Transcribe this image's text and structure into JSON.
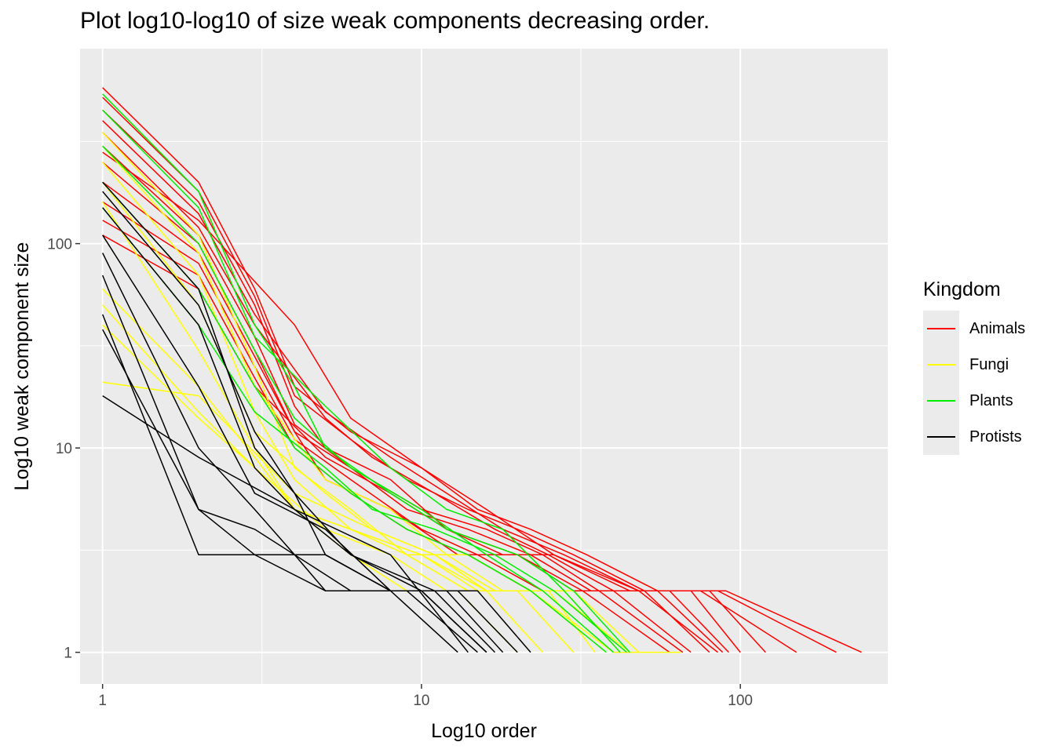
{
  "chart_data": {
    "type": "line",
    "title": "Plot log10-log10 of size  weak components decreasing order.",
    "xlabel": "Log10 order",
    "ylabel": "Log10 weak component size",
    "x_scale": "log10",
    "y_scale": "log10",
    "xlim": [
      0.85,
      290
    ],
    "ylim": [
      0.7,
      900
    ],
    "x_ticks": [
      1,
      10,
      100
    ],
    "x_tick_labels": [
      "1",
      "10",
      "100"
    ],
    "y_ticks": [
      1,
      10,
      100
    ],
    "y_tick_labels": [
      "1",
      "10",
      "100"
    ],
    "grid": true,
    "legend": {
      "title": "Kingdom",
      "position": "right",
      "entries": [
        {
          "name": "Animals",
          "color": "#ff0000"
        },
        {
          "name": "Fungi",
          "color": "#ffff00"
        },
        {
          "name": "Plants",
          "color": "#00ee00"
        },
        {
          "name": "Protists",
          "color": "#000000"
        }
      ]
    },
    "series": [
      {
        "name": "Animals",
        "color": "#ff0000",
        "lines": [
          {
            "x": [
              1,
              2,
              3,
              4,
              6,
              10,
              15,
              22,
              33,
              55,
              90,
              240
            ],
            "y": [
              580,
              200,
              60,
              20,
              12,
              8,
              5,
              4,
              3,
              2,
              2,
              1
            ]
          },
          {
            "x": [
              1,
              2,
              3,
              4,
              6,
              9,
              14,
              20,
              30,
              50,
              85,
              200
            ],
            "y": [
              520,
              180,
              55,
              18,
              11,
              7,
              5,
              4,
              3,
              2,
              2,
              1
            ]
          },
          {
            "x": [
              1,
              2,
              3,
              4,
              5,
              8,
              12,
              18,
              26,
              45,
              75,
              150
            ],
            "y": [
              450,
              160,
              50,
              16,
              10,
              7,
              4,
              3,
              3,
              2,
              2,
              1
            ]
          },
          {
            "x": [
              1,
              2,
              3,
              5,
              8,
              12,
              18,
              28,
              48,
              80,
              120
            ],
            "y": [
              400,
              140,
              45,
              15,
              9,
              6,
              4,
              3,
              2,
              2,
              1
            ]
          },
          {
            "x": [
              1,
              2,
              3,
              5,
              7,
              11,
              17,
              25,
              40,
              70,
              100
            ],
            "y": [
              350,
              120,
              40,
              14,
              9,
              6,
              4,
              3,
              2,
              2,
              1
            ]
          },
          {
            "x": [
              1,
              2,
              3,
              4,
              6,
              10,
              16,
              24,
              36,
              60,
              92
            ],
            "y": [
              300,
              110,
              35,
              13,
              8,
              5,
              4,
              3,
              2,
              2,
              1
            ]
          },
          {
            "x": [
              1,
              2,
              3,
              4,
              6,
              9,
              14,
              22,
              34,
              55,
              88
            ],
            "y": [
              250,
              100,
              30,
              12,
              8,
              5,
              4,
              3,
              2,
              2,
              1
            ]
          },
          {
            "x": [
              1,
              2,
              3,
              4,
              5,
              8,
              13,
              20,
              30,
              50,
              80
            ],
            "y": [
              200,
              90,
              28,
              12,
              7,
              5,
              3,
              3,
              2,
              2,
              1
            ]
          },
          {
            "x": [
              1,
              2,
              3,
              4,
              6,
              10,
              15,
              24,
              40,
              70
            ],
            "y": [
              160,
              80,
              25,
              11,
              7,
              4,
              3,
              2,
              2,
              1
            ]
          },
          {
            "x": [
              1,
              2,
              3,
              4,
              6,
              9,
              14,
              22,
              36,
              66
            ],
            "y": [
              130,
              70,
              22,
              10,
              6,
              4,
              3,
              2,
              2,
              1
            ]
          },
          {
            "x": [
              1,
              2,
              3,
              5,
              8,
              12,
              20,
              32,
              60
            ],
            "y": [
              110,
              60,
              20,
              9,
              6,
              4,
              3,
              2,
              1
            ]
          },
          {
            "x": [
              1,
              2,
              4,
              6,
              10,
              16,
              26,
              48,
              85
            ],
            "y": [
              280,
              130,
              40,
              14,
              8,
              5,
              3,
              2,
              1
            ]
          }
        ]
      },
      {
        "name": "Fungi",
        "color": "#ffff00",
        "lines": [
          {
            "x": [
              1,
              2,
              3,
              4,
              6,
              9,
              14,
              22,
              40,
              65
            ],
            "y": [
              350,
              110,
              25,
              8,
              5,
              3,
              3,
              2,
              1,
              1
            ]
          },
          {
            "x": [
              1,
              2,
              3,
              5,
              8,
              12,
              18,
              30,
              48
            ],
            "y": [
              300,
              90,
              20,
              7,
              5,
              3,
              2,
              2,
              1
            ]
          },
          {
            "x": [
              1,
              2,
              3,
              4,
              6,
              10,
              16,
              26,
              45
            ],
            "y": [
              250,
              70,
              15,
              7,
              4,
              3,
              2,
              2,
              1
            ]
          },
          {
            "x": [
              1,
              2,
              3,
              5,
              7,
              11,
              17,
              28,
              42
            ],
            "y": [
              200,
              50,
              12,
              6,
              4,
              3,
              2,
              2,
              1
            ]
          },
          {
            "x": [
              1,
              2,
              3,
              4,
              6,
              9,
              14,
              22,
              38
            ],
            "y": [
              160,
              30,
              10,
              5,
              4,
              3,
              2,
              2,
              1
            ]
          },
          {
            "x": [
              1,
              2,
              3,
              4,
              6,
              10,
              15,
              25,
              35
            ],
            "y": [
              60,
              20,
              9,
              5,
              4,
              3,
              2,
              2,
              1
            ]
          },
          {
            "x": [
              1,
              2,
              3,
              5,
              8,
              12,
              20,
              30
            ],
            "y": [
              50,
              15,
              8,
              4,
              3,
              2,
              2,
              1
            ]
          },
          {
            "x": [
              1,
              2,
              4,
              7,
              11,
              16,
              24
            ],
            "y": [
              21,
              18,
              6,
              4,
              3,
              2,
              1
            ]
          },
          {
            "x": [
              1,
              2,
              3,
              4,
              6,
              9,
              13,
              20
            ],
            "y": [
              40,
              14,
              8,
              5,
              3,
              2,
              2,
              1
            ]
          }
        ]
      },
      {
        "name": "Plants",
        "color": "#00ee00",
        "lines": [
          {
            "x": [
              1,
              2,
              3,
              4,
              5,
              8,
              12,
              20,
              30,
              45
            ],
            "y": [
              540,
              180,
              40,
              20,
              10,
              6,
              4,
              3,
              2,
              1
            ]
          },
          {
            "x": [
              1,
              2,
              3,
              5,
              8,
              12,
              18,
              28,
              42
            ],
            "y": [
              450,
              150,
              35,
              16,
              8,
              5,
              4,
              2,
              1
            ]
          },
          {
            "x": [
              1,
              2,
              3,
              4,
              6,
              10,
              16,
              24,
              40
            ],
            "y": [
              300,
              100,
              30,
              14,
              8,
              5,
              3,
              2,
              1
            ]
          },
          {
            "x": [
              1,
              2,
              3,
              4,
              6,
              9,
              14,
              22,
              38
            ],
            "y": [
              200,
              60,
              20,
              10,
              6,
              4,
              3,
              2,
              1
            ]
          },
          {
            "x": [
              1,
              2,
              3,
              5,
              7,
              11,
              17,
              26,
              44
            ],
            "y": [
              150,
              40,
              15,
              8,
              5,
              4,
              3,
              2,
              1
            ]
          }
        ]
      },
      {
        "name": "Protists",
        "color": "#000000",
        "lines": [
          {
            "x": [
              1,
              2,
              3,
              4,
              5,
              8,
              13,
              20
            ],
            "y": [
              200,
              60,
              10,
              6,
              3,
              2,
              2,
              1
            ]
          },
          {
            "x": [
              1,
              2,
              3,
              4,
              6,
              10,
              15,
              22
            ],
            "y": [
              150,
              40,
              8,
              5,
              3,
              2,
              2,
              1
            ]
          },
          {
            "x": [
              1,
              2,
              3,
              5,
              8,
              12,
              18
            ],
            "y": [
              110,
              20,
              6,
              4,
              2,
              2,
              1
            ]
          },
          {
            "x": [
              1,
              2,
              3,
              4,
              6,
              10,
              16
            ],
            "y": [
              90,
              10,
              5,
              3,
              2,
              2,
              1
            ]
          },
          {
            "x": [
              1,
              2,
              3,
              4,
              5,
              9,
              15
            ],
            "y": [
              70,
              5,
              4,
              3,
              2,
              2,
              1
            ]
          },
          {
            "x": [
              1,
              2,
              3,
              5,
              8,
              13
            ],
            "y": [
              45,
              3,
              3,
              3,
              2,
              1
            ]
          },
          {
            "x": [
              1,
              2,
              4,
              8,
              14
            ],
            "y": [
              18,
              9,
              5,
              3,
              1
            ]
          },
          {
            "x": [
              1,
              2,
              3,
              5,
              10,
              16
            ],
            "y": [
              38,
              5,
              3,
              2,
              2,
              1
            ]
          },
          {
            "x": [
              1,
              2,
              3,
              4,
              6,
              11,
              17
            ],
            "y": [
              180,
              50,
              12,
              6,
              3,
              2,
              1
            ]
          }
        ]
      }
    ]
  }
}
